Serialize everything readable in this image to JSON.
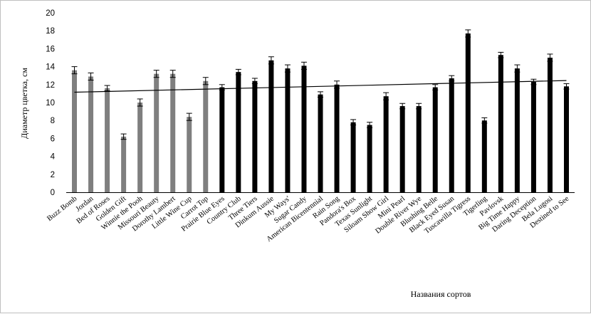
{
  "chart_data": {
    "type": "bar",
    "title": "",
    "xlabel": "Названия сортов",
    "ylabel": "Диаметр цветка, см",
    "ylim": [
      0,
      20
    ],
    "yticks": [
      0,
      2,
      4,
      6,
      8,
      10,
      12,
      14,
      16,
      18,
      20
    ],
    "grid": false,
    "categories": [
      "Buzz Bomb",
      "Jordan",
      "Bed of Roses",
      "Golden Gift",
      "Winnie the Pooh",
      "Missouri Beauty",
      "Dorothy Lambert",
      "Little Wine Cup",
      "Carrot Top",
      "Prairie Blue Eyes",
      "Country Club",
      "Three Tiers",
      "Dinkum Aussie",
      "My Ways'",
      "Sugar Candy",
      "American Bicentennial",
      "Rain Song",
      "Pandora's Box",
      "Texas Sunlight",
      "Siloam Show Girl",
      "Mini Pearl",
      "Double River Wye",
      "Blushing Belle",
      "Black Eyed Susan",
      "Tuscawilla Tigress",
      "Tigerling",
      "Pavlovsk",
      "Big Time Happy",
      "Daring Deception",
      "Bela Lugosi",
      "Destined to See"
    ],
    "values": [
      13.6,
      12.9,
      11.6,
      6.2,
      10.0,
      13.2,
      13.2,
      8.4,
      12.4,
      11.7,
      13.4,
      12.4,
      14.7,
      13.8,
      14.1,
      10.9,
      12.0,
      7.8,
      7.5,
      10.7,
      9.6,
      9.6,
      11.7,
      12.7,
      17.7,
      8.0,
      15.3,
      13.8,
      12.3,
      15.0,
      11.8
    ],
    "errors": [
      0.4,
      0.4,
      0.3,
      0.3,
      0.4,
      0.4,
      0.4,
      0.4,
      0.4,
      0.3,
      0.3,
      0.3,
      0.4,
      0.4,
      0.4,
      0.3,
      0.4,
      0.3,
      0.3,
      0.4,
      0.3,
      0.3,
      0.3,
      0.3,
      0.4,
      0.3,
      0.3,
      0.4,
      0.3,
      0.4,
      0.3
    ],
    "groups": [
      "grey",
      "grey",
      "grey",
      "grey",
      "grey",
      "grey",
      "grey",
      "grey",
      "grey",
      "black",
      "black",
      "black",
      "black",
      "black",
      "black",
      "black",
      "black",
      "black",
      "black",
      "black",
      "black",
      "black",
      "black",
      "black",
      "black",
      "black",
      "black",
      "black",
      "black",
      "black",
      "black"
    ],
    "colors": {
      "grey": "#7f7f7f",
      "black": "#000000",
      "trendline": "#000000"
    },
    "trendline": {
      "type": "linear",
      "start": 11.15,
      "end": 12.45
    }
  }
}
